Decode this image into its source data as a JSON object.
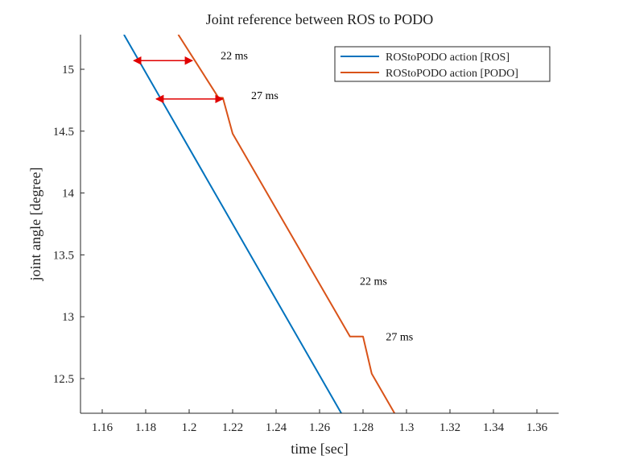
{
  "chart_data": {
    "type": "line",
    "title": "Joint reference between ROS to PODO",
    "xlabel": "time [sec]",
    "ylabel": "joint angle [degree]",
    "xlim": [
      1.15,
      1.37
    ],
    "ylim": [
      12.22,
      15.28
    ],
    "xticks": [
      "1.16",
      "1.18",
      "1.2",
      "1.22",
      "1.24",
      "1.26",
      "1.28",
      "1.3",
      "1.32",
      "1.34",
      "1.36"
    ],
    "xtick_values": [
      1.16,
      1.18,
      1.2,
      1.22,
      1.24,
      1.26,
      1.28,
      1.3,
      1.32,
      1.34,
      1.36
    ],
    "yticks": [
      "12.5",
      "13",
      "13.5",
      "14",
      "14.5",
      "15"
    ],
    "ytick_values": [
      12.5,
      13,
      13.5,
      14,
      14.5,
      15
    ],
    "grid": false,
    "legend_position": "top-right",
    "series": [
      {
        "name": "ROStoPODO action [ROS]",
        "color": "#0072BD",
        "points": [
          [
            1.17,
            15.28
          ],
          [
            1.27,
            12.22
          ]
        ]
      },
      {
        "name": "ROStoPODO action [PODO]",
        "color": "#D95319",
        "points": [
          [
            1.195,
            15.28
          ],
          [
            1.2135,
            14.77
          ],
          [
            1.2155,
            14.77
          ],
          [
            1.22,
            14.48
          ],
          [
            1.274,
            12.84
          ],
          [
            1.28,
            12.84
          ],
          [
            1.284,
            12.54
          ],
          [
            1.2945,
            12.22
          ]
        ]
      }
    ],
    "annotations": [
      {
        "text": "22 ms",
        "x": 1.2145,
        "y": 15.08
      },
      {
        "text": "27 ms",
        "x": 1.2285,
        "y": 14.76
      },
      {
        "text": "22 ms",
        "x": 1.2785,
        "y": 13.26
      },
      {
        "text": "27 ms",
        "x": 1.2905,
        "y": 12.81
      }
    ],
    "arrows": [
      {
        "x1": 1.1745,
        "x2": 1.2015,
        "y": 15.07,
        "color": "#E00000"
      },
      {
        "x1": 1.1848,
        "x2": 1.2155,
        "y": 14.76,
        "color": "#E00000"
      }
    ]
  }
}
